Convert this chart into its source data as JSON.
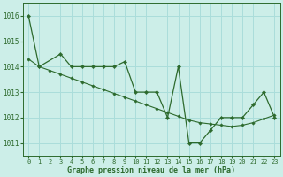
{
  "xlabel": "Graphe pression niveau de la mer (hPa)",
  "x_ticks": [
    0,
    1,
    2,
    3,
    4,
    5,
    6,
    7,
    8,
    9,
    10,
    11,
    12,
    13,
    14,
    15,
    16,
    17,
    18,
    19,
    20,
    21,
    22,
    23
  ],
  "ylim": [
    1010.5,
    1016.5
  ],
  "yticks": [
    1011,
    1012,
    1013,
    1014,
    1015,
    1016
  ],
  "bg_color": "#cceee8",
  "grid_color": "#aaddda",
  "line_color": "#2d6a2d",
  "series1": {
    "x": [
      0,
      1,
      3,
      4,
      5,
      6,
      7,
      8,
      9,
      10,
      11,
      12,
      13,
      14,
      15,
      16,
      17,
      18,
      19,
      20,
      21,
      22,
      23
    ],
    "y": [
      1016.0,
      1014.0,
      1014.5,
      1014.0,
      1014.0,
      1014.0,
      1014.0,
      1014.0,
      1014.2,
      1013.0,
      1013.0,
      1013.0,
      1012.0,
      1014.0,
      1011.0,
      1011.0,
      1011.5,
      1012.0,
      1012.0,
      1012.0,
      1012.5,
      1013.0,
      1012.0
    ]
  },
  "series2": {
    "x": [
      0,
      1,
      2,
      3,
      4,
      5,
      6,
      7,
      8,
      9,
      10,
      11,
      12,
      13,
      14,
      15,
      16,
      17,
      18,
      19,
      20,
      21,
      22,
      23
    ],
    "y": [
      1014.3,
      1014.0,
      1013.85,
      1013.7,
      1013.55,
      1013.4,
      1013.25,
      1013.1,
      1012.95,
      1012.8,
      1012.65,
      1012.5,
      1012.35,
      1012.2,
      1012.05,
      1011.9,
      1011.8,
      1011.75,
      1011.7,
      1011.65,
      1011.7,
      1011.8,
      1011.95,
      1012.1
    ]
  }
}
